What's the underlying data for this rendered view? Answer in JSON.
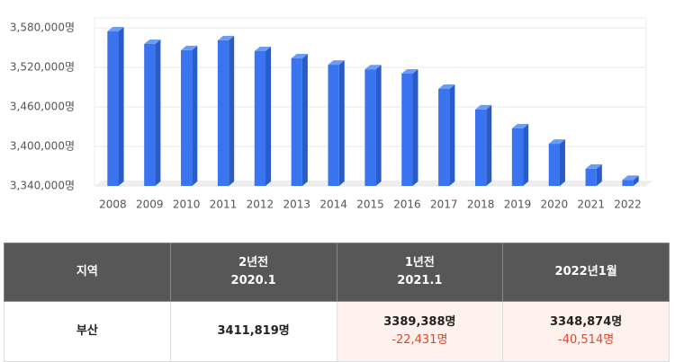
{
  "chart_data": {
    "type": "bar",
    "categories": [
      "2008",
      "2009",
      "2010",
      "2011",
      "2012",
      "2013",
      "2014",
      "2015",
      "2016",
      "2017",
      "2018",
      "2019",
      "2020",
      "2021",
      "2022"
    ],
    "values": [
      3574600,
      3555500,
      3546000,
      3561000,
      3544600,
      3533700,
      3524000,
      3517000,
      3510500,
      3487300,
      3456000,
      3427300,
      3404000,
      3366000,
      3349000
    ],
    "color": "#3a74f0",
    "ylim": [
      3340000,
      3595000
    ],
    "yticks": [
      {
        "value": 3340000,
        "label": "3,340,000명"
      },
      {
        "value": 3400000,
        "label": "3,400,000명"
      },
      {
        "value": 3460000,
        "label": "3,460,000명"
      },
      {
        "value": 3520000,
        "label": "3,520,000명"
      },
      {
        "value": 3580000,
        "label": "3,580,000명"
      }
    ],
    "grid": true
  },
  "table": {
    "header": [
      "지역",
      [
        "2년전",
        "2020.1"
      ],
      [
        "1년전",
        "2021.1"
      ],
      "2022년1월"
    ],
    "rows": [
      [
        "부산",
        "3411,819명",
        [
          "3389,388명",
          "-22,431명"
        ],
        [
          "3348,874명",
          "-40,514명"
        ]
      ]
    ]
  }
}
